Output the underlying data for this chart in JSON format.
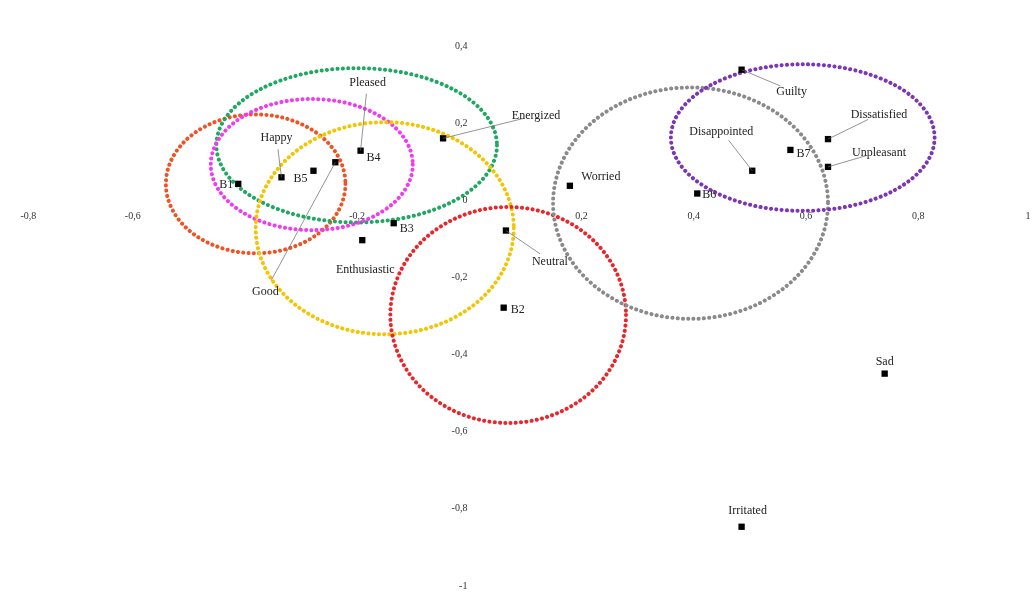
{
  "chart_data": {
    "type": "scatter",
    "xlim": [
      -0.8,
      1
    ],
    "ylim": [
      -1,
      0.4
    ],
    "xticks": [
      {
        "value": -0.8,
        "label": "-0,8"
      },
      {
        "value": -0.6,
        "label": "-0,6"
      },
      {
        "value": -0.2,
        "label": "-0,2"
      },
      {
        "value": 0.2,
        "label": "0,2"
      },
      {
        "value": 0.4,
        "label": "0,4"
      },
      {
        "value": 0.6,
        "label": "0,6"
      },
      {
        "value": 0.8,
        "label": "0,8"
      },
      {
        "value": 1,
        "label": "1"
      }
    ],
    "yticks": [
      {
        "value": 0.4,
        "label": "0,4"
      },
      {
        "value": 0.2,
        "label": "0,2"
      },
      0,
      {
        "value": -0.2,
        "label": "-0,2"
      },
      {
        "value": -0.4,
        "label": "-0,4"
      },
      {
        "value": -0.6,
        "label": "-0,6"
      },
      {
        "value": -0.8,
        "label": "-0,8"
      },
      -1
    ],
    "grid": false,
    "series": [
      {
        "color": "#000000",
        "marker": "square",
        "x": [
          -0.046,
          -0.334,
          -0.277,
          -0.238,
          -0.193,
          -0.134,
          -0.19,
          0.573,
          0.486,
          0.64,
          0.64,
          0.505,
          0.18,
          0.066,
          0.062,
          0.741,
          0.486,
          -0.411,
          0.407
        ],
        "values": [
          0.158,
          0.057,
          0.074,
          0.096,
          0.126,
          -0.062,
          -0.106,
          0.128,
          0.336,
          0.156,
          0.084,
          0.074,
          0.035,
          -0.081,
          -0.281,
          -0.452,
          -0.849,
          0.04,
          0.015
        ]
      }
    ],
    "annotations": [
      {
        "text": "Guilty",
        "x": 0.486,
        "y": 0.336
      },
      {
        "text": "Dissatisfied",
        "x": 0.64,
        "y": 0.156
      },
      {
        "text": "Unpleasant",
        "x": 0.64,
        "y": 0.084
      },
      {
        "text": "Disappointed",
        "x": 0.505,
        "y": 0.074
      },
      {
        "text": "B7",
        "x": 0.573,
        "y": 0.128
      },
      {
        "text": "B6",
        "x": 0.407,
        "y": 0.015
      },
      {
        "text": "Worried",
        "x": 0.18,
        "y": 0.035
      },
      {
        "text": "Energized",
        "x": -0.046,
        "y": 0.158
      },
      {
        "text": "Neutral",
        "x": 0.066,
        "y": -0.081
      },
      {
        "text": "B2",
        "x": 0.062,
        "y": -0.281
      },
      {
        "text": "Sad",
        "x": 0.741,
        "y": -0.452
      },
      {
        "text": "Irritated",
        "x": 0.486,
        "y": -0.849
      },
      {
        "text": "Happy",
        "x": -0.334,
        "y": 0.057
      },
      {
        "text": "Pleased",
        "x": -0.193,
        "y": 0.126
      },
      {
        "text": "B5",
        "x": -0.277,
        "y": 0.074
      },
      {
        "text": "B4",
        "x": -0.193,
        "y": 0.126
      },
      {
        "text": "B1",
        "x": -0.411,
        "y": 0.04
      },
      {
        "text": "B3",
        "x": -0.134,
        "y": -0.062
      },
      {
        "text": "Enthusiastic",
        "x": -0.19,
        "y": -0.106
      },
      {
        "text": "Good",
        "x": -0.238,
        "y": 0.096
      }
    ]
  }
}
